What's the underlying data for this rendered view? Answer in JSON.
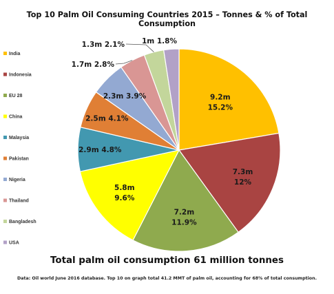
{
  "chart_data": {
    "type": "pie",
    "title": "Top 10 Palm Oil Consuming Countries 2015 – Tonnes & % of Total Consumption",
    "total_label": "Total palm oil consumption 61 million tonnes",
    "source_note": "Data: Oil world June 2016 database. Top 10 on graph total 41.2 MMT of palm oil, accounting for 68% of total consumption.",
    "legend_position": "left",
    "slices": [
      {
        "name": "India",
        "value": 9.2,
        "value_label": "9.2m",
        "percent_label": "15.2%",
        "color": "#FFC000"
      },
      {
        "name": "Indonesia",
        "value": 7.3,
        "value_label": "7.3m",
        "percent_label": "12%",
        "color": "#A94442"
      },
      {
        "name": "EU 28",
        "value": 7.2,
        "value_label": "7.2m",
        "percent_label": "11.9%",
        "color": "#8FAA4E"
      },
      {
        "name": "China",
        "value": 5.8,
        "value_label": "5.8m",
        "percent_label": "9.6%",
        "color": "#FFFF00"
      },
      {
        "name": "Malaysia",
        "value": 2.9,
        "value_label": "2.9m",
        "percent_label": "4.8%",
        "color": "#4298B0"
      },
      {
        "name": "Pakistan",
        "value": 2.5,
        "value_label": "2.5m",
        "percent_label": "4.1%",
        "color": "#E07F35"
      },
      {
        "name": "Nigeria",
        "value": 2.3,
        "value_label": "2.3m",
        "percent_label": "3.9%",
        "color": "#93A9D2"
      },
      {
        "name": "Thailand",
        "value": 1.7,
        "value_label": "1.7m",
        "percent_label": "2.8%",
        "color": "#D99694"
      },
      {
        "name": "Bangladesh",
        "value": 1.3,
        "value_label": "1.3m",
        "percent_label": "2.1%",
        "color": "#C3D69B"
      },
      {
        "name": "USA",
        "value": 1.0,
        "value_label": "1m",
        "percent_label": "1.8%",
        "color": "#B2A1C7"
      }
    ]
  }
}
